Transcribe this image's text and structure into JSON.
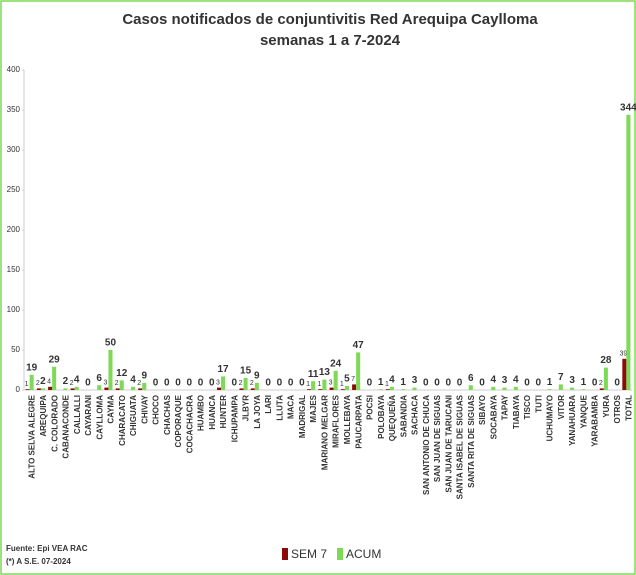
{
  "chart_data": {
    "type": "bar",
    "title": "Casos notificados de conjuntivitis Red Arequipa Caylloma",
    "subtitle": "semanas 1 a 7-2024",
    "categories": [
      "ALTO SELVA ALEGRE",
      "AREQUIPA",
      "C. COLORADO",
      "CABANACONDE",
      "CALLALLI",
      "CAYARANI",
      "CAYLLOMA",
      "CAYMA",
      "CHARACATO",
      "CHIGUATA",
      "CHIVAY",
      "CHOCO",
      "CHACHAS",
      "COPORAQUE",
      "COCACHACRA",
      "HUAMBO",
      "HUANCA",
      "HUNTER",
      "ICHUPAMPA",
      "JLBYR",
      "LA JOYA",
      "LARI",
      "LLUTA",
      "MACA",
      "MADRIGAL",
      "MAJES",
      "MARIANO MELGAR",
      "MIRAFLORES",
      "MOLLEBAYA",
      "PAUCARPATA",
      "POCSI",
      "POLOBAYA",
      "QUEQUEÑA",
      "SABANDIA",
      "SACHACA",
      "SAN ANTONIO DE CHUCA",
      "SAN JUAN DE SIGUAS",
      "SAN JUAN DE TARUCANI",
      "SANTA ISABEL DE SIGUAS",
      "SANTA RITA DE SIGUAS",
      "SIBAYO",
      "SOCABAYA",
      "TAPAY",
      "TIABAYA",
      "TISCO",
      "TUTI",
      "UCHUMAYO",
      "VITOR",
      "YANAHUARA",
      "YANQUE",
      "YARABAMBA",
      "YURA",
      "OTROS",
      "TOTAL"
    ],
    "series": [
      {
        "name": "SEM 7",
        "color": "#8b0a0a",
        "values": [
          1,
          2,
          4,
          null,
          2,
          null,
          null,
          3,
          2,
          null,
          2,
          null,
          null,
          null,
          null,
          null,
          null,
          3,
          null,
          2,
          2,
          null,
          null,
          null,
          null,
          1,
          1,
          3,
          1,
          7,
          null,
          null,
          1,
          null,
          null,
          null,
          null,
          null,
          null,
          null,
          null,
          null,
          null,
          null,
          null,
          null,
          null,
          null,
          null,
          null,
          null,
          2,
          null,
          39
        ]
      },
      {
        "name": "ACUM",
        "color": "#7ed957",
        "values": [
          19,
          2,
          29,
          2,
          4,
          0,
          6,
          50,
          12,
          4,
          9,
          0,
          0,
          0,
          0,
          0,
          0,
          17,
          0,
          15,
          9,
          0,
          0,
          0,
          0,
          11,
          13,
          24,
          5,
          47,
          0,
          1,
          4,
          1,
          3,
          0,
          0,
          0,
          0,
          6,
          0,
          4,
          3,
          4,
          0,
          0,
          1,
          7,
          3,
          1,
          0,
          28,
          0,
          344
        ]
      }
    ],
    "ylim": [
      0,
      400
    ],
    "yticks": [
      0,
      50,
      100,
      150,
      200,
      250,
      300,
      350,
      400
    ],
    "notes": [
      "Fuente: Epi VEA RAC",
      "(*) A S.E. 07-2024"
    ]
  }
}
